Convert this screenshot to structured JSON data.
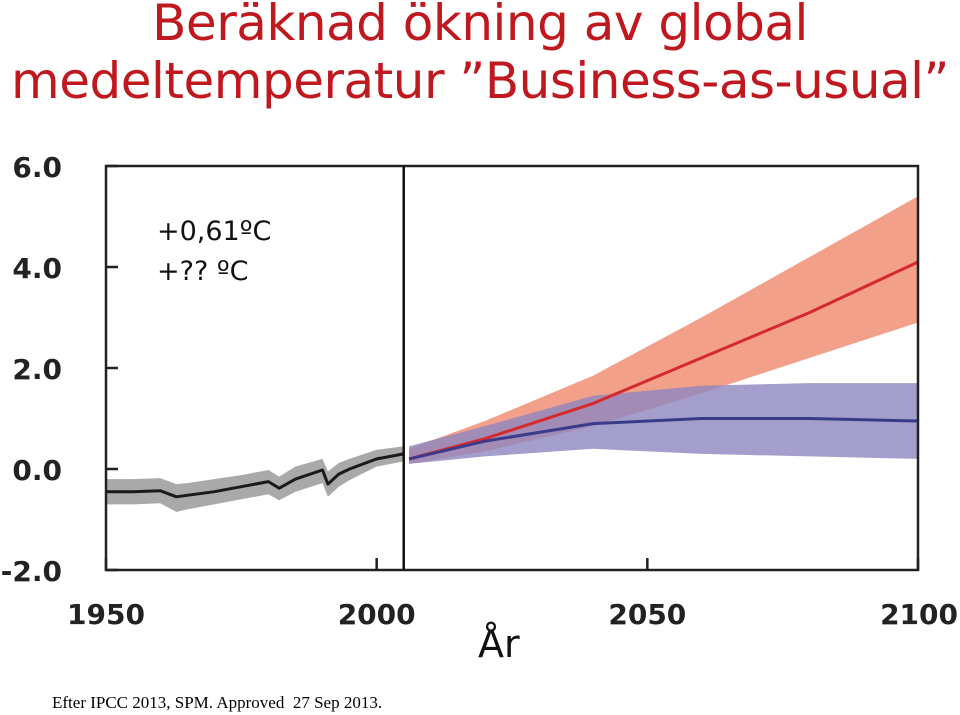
{
  "title": {
    "line1": "Beräknad ökning av global",
    "line2": "medeltemperatur ”Business-as-usual”"
  },
  "annotations": [
    "+0,61ºC",
    "+?? ºC"
  ],
  "source": "Efter IPCC 2013, SPM. Approved  27 Sep 2013.",
  "colors": {
    "title": "#c0181f",
    "historical_line": "#1a1a1a",
    "historical_band": "#9a9a9a",
    "rcp85_line": "#d62a2a",
    "rcp85_band": "#f08f74",
    "rcp26_line": "#3b3b8c",
    "rcp26_band": "#8d86bf"
  },
  "chart_data": {
    "type": "line",
    "xlabel": "År",
    "ylabel": "",
    "xlim": [
      1950,
      2100
    ],
    "ylim": [
      -2.0,
      6.0
    ],
    "xticks": [
      "1950",
      "2000",
      "2050",
      "2100"
    ],
    "yticks": [
      "-2.0",
      "0.0",
      "2.0",
      "4.0",
      "6.0"
    ],
    "vline_x": 2005,
    "grid": false,
    "legend": "none",
    "series": [
      {
        "key": "historical",
        "x": [
          1950,
          1955,
          1960,
          1963,
          1965,
          1970,
          1975,
          1980,
          1982,
          1985,
          1990,
          1991,
          1993,
          1995,
          2000,
          2005
        ],
        "values": [
          -0.45,
          -0.45,
          -0.43,
          -0.55,
          -0.52,
          -0.45,
          -0.35,
          -0.25,
          -0.38,
          -0.2,
          -0.02,
          -0.3,
          -0.1,
          0.0,
          0.2,
          0.3
        ],
        "lower": [
          -0.7,
          -0.7,
          -0.68,
          -0.85,
          -0.8,
          -0.7,
          -0.6,
          -0.5,
          -0.62,
          -0.45,
          -0.28,
          -0.55,
          -0.35,
          -0.22,
          0.05,
          0.15
        ],
        "upper": [
          -0.2,
          -0.2,
          -0.18,
          -0.3,
          -0.28,
          -0.2,
          -0.12,
          -0.02,
          -0.15,
          0.05,
          0.2,
          -0.05,
          0.12,
          0.2,
          0.38,
          0.45
        ]
      },
      {
        "key": "rcp85",
        "x": [
          2006,
          2020,
          2040,
          2060,
          2080,
          2100
        ],
        "values": [
          0.2,
          0.6,
          1.3,
          2.2,
          3.1,
          4.1
        ],
        "lower": [
          0.1,
          0.35,
          0.85,
          1.5,
          2.2,
          2.9
        ],
        "upper": [
          0.4,
          0.95,
          1.85,
          3.0,
          4.2,
          5.4
        ]
      },
      {
        "key": "rcp26",
        "x": [
          2006,
          2020,
          2040,
          2060,
          2080,
          2100
        ],
        "values": [
          0.2,
          0.55,
          0.9,
          1.0,
          1.0,
          0.95
        ],
        "lower": [
          0.1,
          0.25,
          0.4,
          0.3,
          0.25,
          0.2
        ],
        "upper": [
          0.45,
          0.85,
          1.45,
          1.65,
          1.7,
          1.7
        ]
      }
    ]
  }
}
